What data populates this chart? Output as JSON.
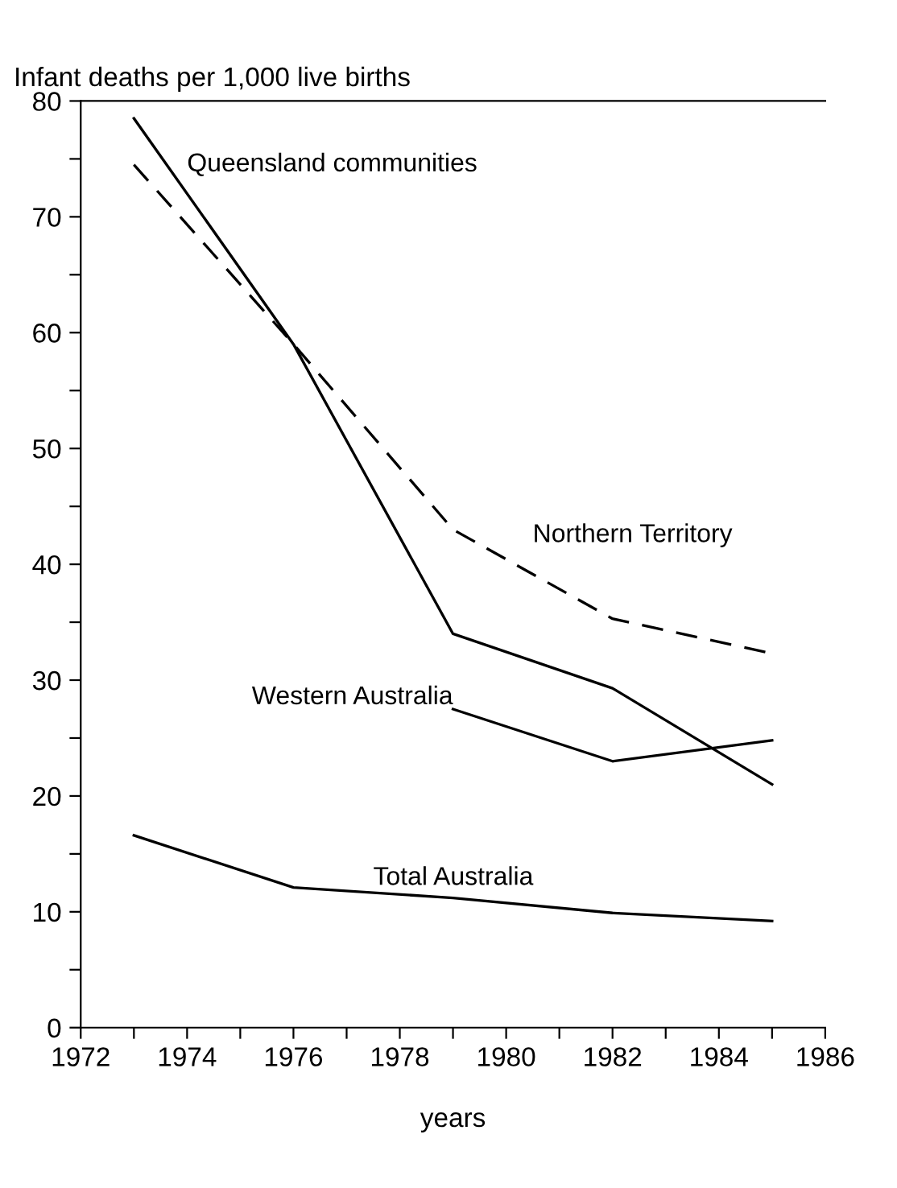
{
  "chart_data": {
    "type": "line",
    "ylabel": "Infant deaths per 1,000 live births",
    "xlabel": "years",
    "x": [
      1973,
      1976,
      1979,
      1982,
      1985
    ],
    "series": [
      {
        "name": "Queensland communities",
        "color": "#000000",
        "line_style": "solid",
        "values": [
          78.5,
          59,
          34,
          29.3,
          21
        ]
      },
      {
        "name": "Northern Territory",
        "color": "#000000",
        "line_style": "dashed",
        "values": [
          74.5,
          59,
          43,
          35.3,
          32.3
        ]
      },
      {
        "name": "Western Australia",
        "color": "#000000",
        "line_style": "solid",
        "values": [
          null,
          null,
          27.5,
          23,
          24.8
        ]
      },
      {
        "name": "Total Australia",
        "color": "#000000",
        "line_style": "solid",
        "values": [
          16.6,
          12.1,
          11.2,
          9.9,
          9.2
        ]
      }
    ],
    "xlim": [
      1972,
      1986
    ],
    "ylim": [
      0,
      80
    ],
    "xticks": [
      1972,
      {
        "value": 1973,
        "label": null
      },
      1974,
      {
        "value": 1975,
        "label": null
      },
      1976,
      {
        "value": 1977,
        "label": null
      },
      1978,
      {
        "value": 1979,
        "label": null
      },
      1980,
      {
        "value": 1981,
        "label": null
      },
      1982,
      {
        "value": 1983,
        "label": null
      },
      1984,
      {
        "value": 1985,
        "label": null
      },
      1986
    ],
    "yticks": [
      0,
      {
        "value": 5,
        "label": null
      },
      10,
      {
        "value": 15,
        "label": null
      },
      20,
      {
        "value": 25,
        "label": null
      },
      30,
      {
        "value": 35,
        "label": null
      },
      40,
      {
        "value": 45,
        "label": null
      },
      50,
      {
        "value": 55,
        "label": null
      },
      60,
      {
        "value": 65,
        "label": null
      },
      70,
      {
        "value": 75,
        "label": null
      },
      80
    ],
    "grid": false,
    "legend": false
  }
}
